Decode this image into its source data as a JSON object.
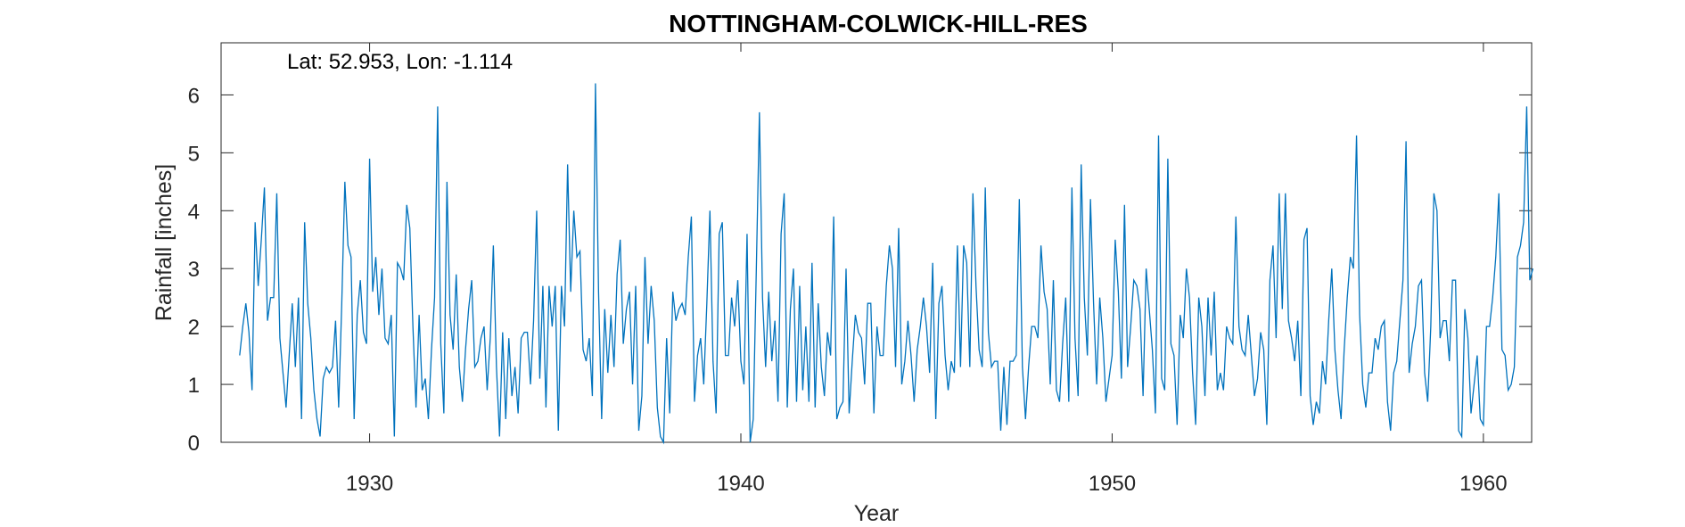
{
  "chart_data": {
    "type": "line",
    "title": "NOTTINGHAM-COLWICK-HILL-RES",
    "annotation": "Lat: 52.953, Lon: -1.114",
    "xlabel": "Year",
    "ylabel": "Rainfall [inches]",
    "xlim": [
      1926,
      1961.3
    ],
    "ylim": [
      0,
      6.9
    ],
    "x_ticks": [
      1930,
      1940,
      1950,
      1960
    ],
    "y_ticks": [
      0,
      1,
      2,
      3,
      4,
      5,
      6
    ],
    "grid": false,
    "line_color": "#0072BD",
    "x_start": 1926.5,
    "x_step_months": 1,
    "series": [
      {
        "values": [
          1.5,
          2.0,
          2.4,
          1.9,
          0.9,
          3.8,
          2.7,
          3.5,
          4.4,
          2.1,
          2.5,
          2.5,
          4.3,
          1.8,
          1.2,
          0.6,
          1.5,
          2.4,
          1.3,
          2.5,
          0.4,
          3.8,
          2.4,
          1.8,
          0.9,
          0.4,
          0.1,
          1.1,
          1.3,
          1.2,
          1.3,
          2.1,
          0.6,
          2.4,
          4.5,
          3.4,
          3.2,
          0.4,
          2.2,
          2.8,
          1.9,
          1.7,
          4.9,
          2.6,
          3.2,
          2.2,
          3.0,
          1.8,
          1.7,
          2.2,
          0.1,
          3.1,
          3.0,
          2.8,
          4.1,
          3.7,
          2.0,
          0.6,
          2.2,
          0.9,
          1.1,
          0.4,
          1.6,
          2.5,
          5.8,
          1.7,
          0.5,
          4.5,
          2.2,
          1.6,
          2.9,
          1.3,
          0.7,
          1.6,
          2.3,
          2.8,
          1.3,
          1.4,
          1.8,
          2.0,
          0.9,
          1.8,
          3.4,
          1.3,
          0.1,
          1.9,
          0.4,
          1.8,
          0.8,
          1.3,
          0.5,
          1.8,
          1.9,
          1.9,
          1.0,
          2.1,
          4.0,
          1.1,
          2.7,
          0.6,
          2.7,
          2.0,
          2.7,
          0.2,
          2.7,
          2.0,
          4.8,
          2.6,
          4.0,
          3.2,
          3.3,
          1.6,
          1.4,
          1.8,
          0.8,
          6.2,
          2.6,
          0.4,
          2.3,
          1.2,
          2.2,
          1.3,
          2.9,
          3.5,
          1.7,
          2.3,
          2.6,
          1.0,
          2.7,
          0.2,
          0.8,
          3.2,
          1.7,
          2.7,
          2.1,
          0.6,
          0.1,
          0.0,
          1.8,
          0.5,
          2.6,
          2.1,
          2.3,
          2.4,
          2.2,
          3.2,
          3.9,
          0.7,
          1.5,
          1.8,
          1.0,
          2.4,
          4.0,
          1.4,
          0.5,
          3.6,
          3.8,
          1.5,
          1.5,
          2.5,
          2.0,
          2.8,
          1.4,
          1.0,
          3.6,
          0.0,
          0.4,
          3.0,
          5.7,
          2.5,
          1.3,
          2.6,
          1.4,
          2.1,
          0.7,
          3.6,
          4.3,
          0.6,
          2.3,
          3.0,
          0.7,
          2.7,
          0.9,
          2.0,
          0.7,
          3.1,
          0.6,
          2.4,
          1.3,
          0.8,
          1.9,
          1.5,
          3.9,
          0.4,
          0.6,
          0.7,
          3.0,
          0.5,
          1.4,
          2.2,
          1.9,
          1.8,
          1.0,
          2.4,
          2.4,
          0.5,
          2.0,
          1.5,
          1.5,
          2.7,
          3.4,
          3.0,
          1.3,
          3.7,
          1.0,
          1.4,
          2.1,
          1.5,
          0.7,
          1.6,
          2.0,
          2.5,
          2.0,
          1.2,
          3.1,
          0.4,
          2.4,
          2.7,
          1.5,
          0.9,
          1.4,
          1.2,
          3.4,
          1.3,
          3.4,
          3.1,
          1.3,
          4.3,
          2.7,
          1.6,
          1.3,
          4.4,
          1.9,
          1.3,
          1.4,
          1.4,
          0.2,
          1.3,
          0.3,
          1.4,
          1.4,
          1.5,
          4.2,
          1.3,
          0.4,
          1.3,
          2.0,
          2.0,
          1.8,
          3.4,
          2.6,
          2.3,
          1.0,
          2.8,
          0.9,
          0.7,
          1.7,
          2.5,
          0.7,
          4.4,
          1.8,
          0.8,
          4.8,
          2.5,
          1.5,
          4.2,
          2.4,
          1.0,
          2.5,
          1.8,
          0.7,
          1.1,
          1.5,
          3.5,
          2.6,
          1.1,
          4.1,
          1.3,
          2.0,
          2.8,
          2.7,
          2.3,
          0.8,
          3.0,
          2.3,
          1.6,
          0.5,
          5.3,
          1.1,
          0.9,
          4.9,
          1.7,
          1.5,
          0.3,
          2.2,
          1.8,
          3.0,
          2.5,
          1.2,
          0.3,
          2.5,
          2.0,
          0.8,
          2.5,
          1.5,
          2.6,
          0.9,
          1.2,
          0.9,
          2.0,
          1.8,
          1.7,
          3.9,
          2.0,
          1.6,
          1.5,
          2.2,
          1.5,
          0.8,
          1.1,
          1.9,
          1.6,
          0.3,
          2.8,
          3.4,
          1.8,
          4.3,
          2.3,
          4.3,
          2.1,
          1.8,
          1.4,
          2.1,
          0.8,
          3.5,
          3.7,
          0.8,
          0.3,
          0.7,
          0.5,
          1.4,
          1.0,
          2.1,
          3.0,
          1.6,
          0.9,
          0.4,
          1.6,
          2.5,
          3.2,
          3.0,
          5.3,
          2.2,
          1.0,
          0.6,
          1.2,
          1.2,
          1.8,
          1.6,
          2.0,
          2.1,
          0.7,
          0.2,
          1.2,
          1.4,
          2.1,
          2.8,
          5.2,
          1.2,
          1.7,
          2.0,
          2.7,
          2.8,
          1.2,
          0.7,
          2.0,
          4.3,
          4.0,
          1.8,
          2.1,
          2.1,
          1.4,
          2.8,
          2.8,
          0.2,
          0.1,
          2.3,
          1.8,
          0.5,
          1.0,
          1.5,
          0.4,
          0.3,
          2.0,
          2.0,
          2.5,
          3.2,
          4.3,
          1.6,
          1.5,
          0.9,
          1.0,
          1.3,
          3.2,
          3.4,
          3.8,
          5.8,
          2.8,
          3.0
        ]
      }
    ]
  }
}
